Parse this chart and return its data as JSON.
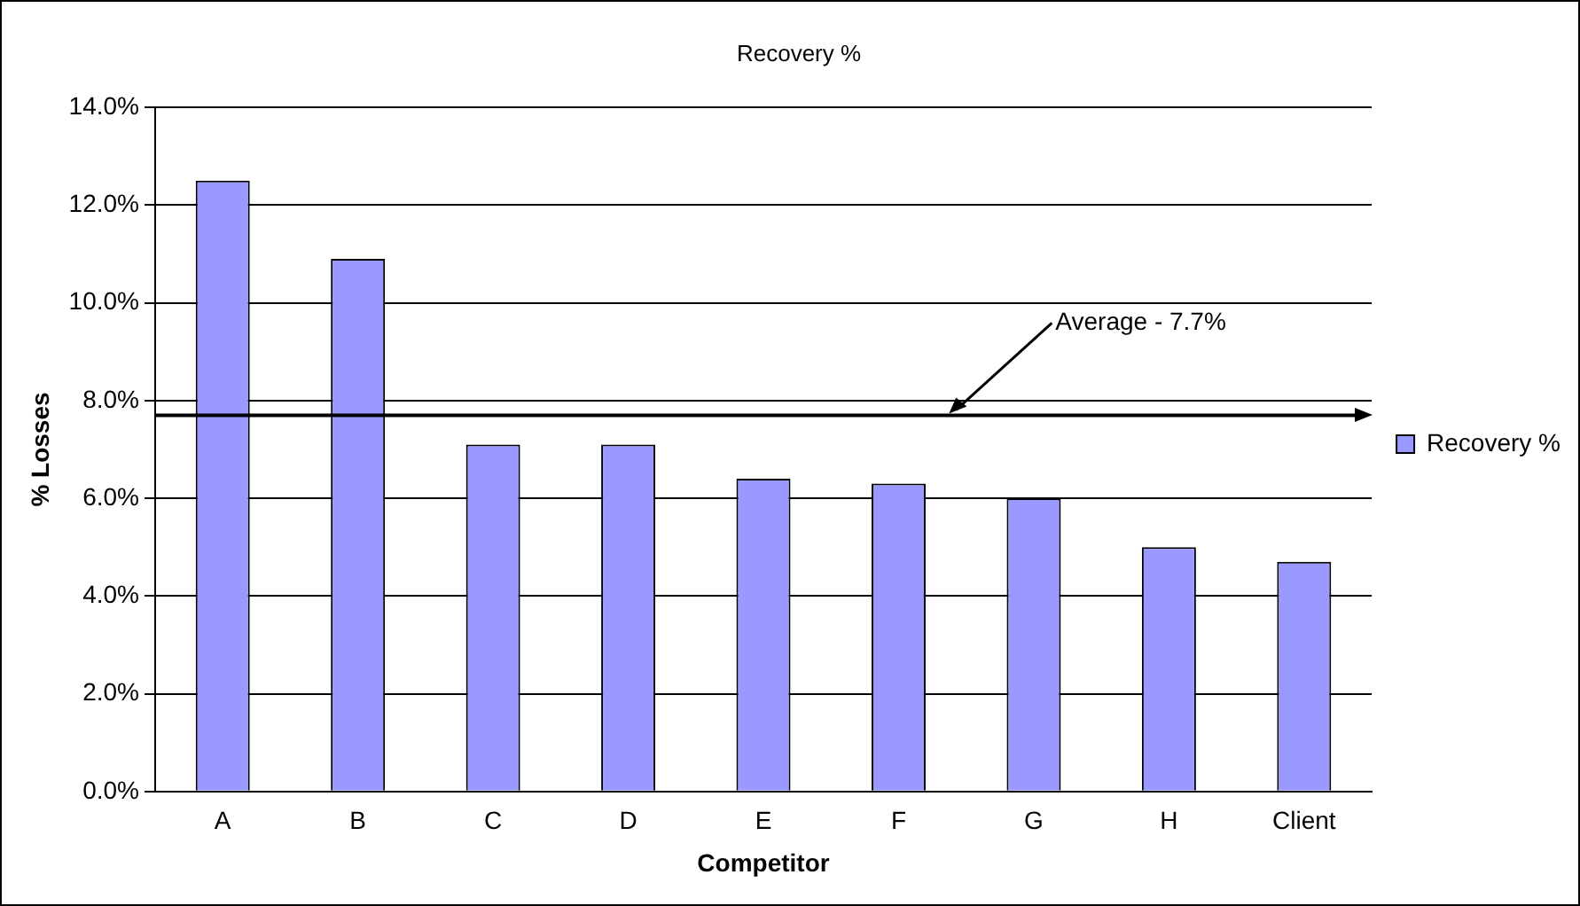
{
  "chart_data": {
    "type": "bar",
    "title": "Recovery %",
    "xlabel": "Competitor",
    "ylabel": "% Losses",
    "categories": [
      "A",
      "B",
      "C",
      "D",
      "E",
      "F",
      "G",
      "H",
      "Client"
    ],
    "series": [
      {
        "name": "Recovery %",
        "color": "#9999ff",
        "values": [
          12.5,
          10.9,
          7.1,
          7.1,
          6.4,
          6.3,
          6.0,
          5.0,
          4.7
        ]
      }
    ],
    "ylim": [
      0,
      14
    ],
    "yticks": [
      {
        "value": 0,
        "label": "0.0%"
      },
      {
        "value": 2,
        "label": "2.0%"
      },
      {
        "value": 4,
        "label": "4.0%"
      },
      {
        "value": 6,
        "label": "6.0%"
      },
      {
        "value": 8,
        "label": "8.0%"
      },
      {
        "value": 10,
        "label": "10.0%"
      },
      {
        "value": 12,
        "label": "12.0%"
      },
      {
        "value": 14,
        "label": "14.0%"
      }
    ],
    "ref_lines": [
      {
        "axis": "y",
        "value": 7.7,
        "label": "Average - 7.7%",
        "color": "#000000"
      }
    ],
    "grid": "y",
    "legend": "right"
  }
}
